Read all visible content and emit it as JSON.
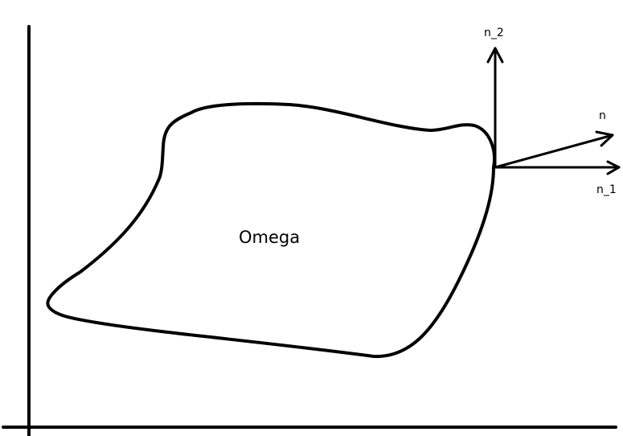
{
  "labels": {
    "region": "Omega",
    "normal": "n",
    "normal_x": "n_1",
    "normal_y": "n_2"
  },
  "colors": {
    "stroke": "#000000",
    "background": "#ffffff"
  }
}
